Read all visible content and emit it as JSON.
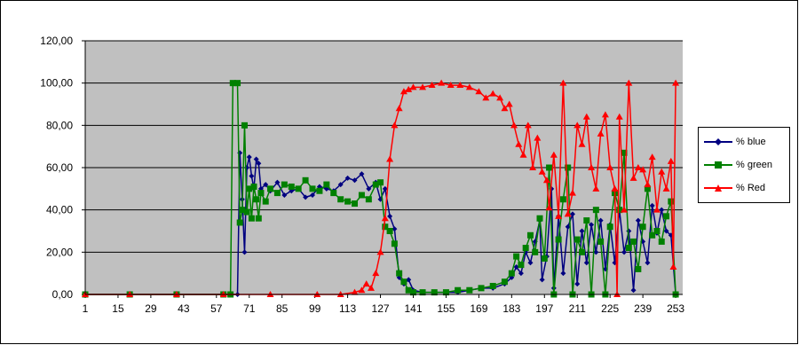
{
  "chart_data": {
    "type": "line",
    "title": "",
    "xlabel": "",
    "ylabel": "",
    "ylim": [
      0,
      120
    ],
    "grid": true,
    "legend_position": "right",
    "colors": {
      "plot_bg": "#C0C0C0",
      "blue": "#000080",
      "green": "#008000",
      "red": "#FF0000"
    },
    "y_ticks": [
      "0,00",
      "20,00",
      "40,00",
      "60,00",
      "80,00",
      "100,00",
      "120,00"
    ],
    "x_ticks": [
      1,
      15,
      29,
      43,
      57,
      71,
      85,
      99,
      113,
      127,
      141,
      155,
      169,
      183,
      197,
      211,
      225,
      239,
      253
    ],
    "series": [
      {
        "name": "% blue",
        "color": "#000080",
        "marker": "diamond",
        "points": [
          [
            1,
            0
          ],
          [
            20,
            0
          ],
          [
            40,
            0
          ],
          [
            60,
            0
          ],
          [
            66,
            0
          ],
          [
            67,
            67
          ],
          [
            68,
            45
          ],
          [
            69,
            20
          ],
          [
            70,
            60
          ],
          [
            71,
            65
          ],
          [
            72,
            56
          ],
          [
            73,
            50
          ],
          [
            74,
            64
          ],
          [
            75,
            62
          ],
          [
            76,
            50
          ],
          [
            78,
            52
          ],
          [
            80,
            49
          ],
          [
            83,
            53
          ],
          [
            86,
            47
          ],
          [
            89,
            49
          ],
          [
            92,
            50
          ],
          [
            95,
            46
          ],
          [
            98,
            47
          ],
          [
            101,
            51
          ],
          [
            104,
            50
          ],
          [
            107,
            49
          ],
          [
            110,
            52
          ],
          [
            113,
            55
          ],
          [
            116,
            54
          ],
          [
            119,
            57
          ],
          [
            122,
            50
          ],
          [
            125,
            53
          ],
          [
            127,
            45
          ],
          [
            129,
            50
          ],
          [
            131,
            37
          ],
          [
            133,
            31
          ],
          [
            135,
            8
          ],
          [
            137,
            5
          ],
          [
            139,
            7
          ],
          [
            141,
            2
          ],
          [
            145,
            1
          ],
          [
            150,
            1
          ],
          [
            155,
            1
          ],
          [
            160,
            1
          ],
          [
            165,
            2
          ],
          [
            170,
            3
          ],
          [
            175,
            3
          ],
          [
            180,
            5
          ],
          [
            183,
            8
          ],
          [
            185,
            13
          ],
          [
            187,
            10
          ],
          [
            189,
            20
          ],
          [
            191,
            15
          ],
          [
            193,
            25
          ],
          [
            195,
            35
          ],
          [
            196,
            7
          ],
          [
            198,
            18
          ],
          [
            200,
            50
          ],
          [
            201,
            3
          ],
          [
            203,
            37
          ],
          [
            205,
            10
          ],
          [
            207,
            32
          ],
          [
            209,
            38
          ],
          [
            211,
            5
          ],
          [
            213,
            30
          ],
          [
            215,
            15
          ],
          [
            217,
            33
          ],
          [
            219,
            20
          ],
          [
            221,
            35
          ],
          [
            223,
            12
          ],
          [
            225,
            33
          ],
          [
            227,
            15
          ],
          [
            229,
            40
          ],
          [
            231,
            20
          ],
          [
            233,
            30
          ],
          [
            235,
            2
          ],
          [
            237,
            35
          ],
          [
            239,
            25
          ],
          [
            241,
            15
          ],
          [
            243,
            42
          ],
          [
            245,
            29
          ],
          [
            247,
            40
          ],
          [
            249,
            30
          ],
          [
            251,
            28
          ],
          [
            253,
            0
          ]
        ]
      },
      {
        "name": "% green",
        "color": "#008000",
        "marker": "square",
        "points": [
          [
            1,
            0
          ],
          [
            20,
            0
          ],
          [
            40,
            0
          ],
          [
            60,
            0
          ],
          [
            63,
            0
          ],
          [
            64,
            100
          ],
          [
            66,
            100
          ],
          [
            67,
            34
          ],
          [
            68,
            40
          ],
          [
            69,
            80
          ],
          [
            70,
            39
          ],
          [
            71,
            50
          ],
          [
            72,
            36
          ],
          [
            73,
            51
          ],
          [
            74,
            45
          ],
          [
            75,
            36
          ],
          [
            76,
            48
          ],
          [
            78,
            44
          ],
          [
            80,
            50
          ],
          [
            83,
            48
          ],
          [
            86,
            52
          ],
          [
            89,
            51
          ],
          [
            92,
            50
          ],
          [
            95,
            54
          ],
          [
            98,
            50
          ],
          [
            101,
            49
          ],
          [
            104,
            52
          ],
          [
            107,
            48
          ],
          [
            110,
            45
          ],
          [
            113,
            44
          ],
          [
            116,
            43
          ],
          [
            119,
            47
          ],
          [
            122,
            45
          ],
          [
            125,
            52
          ],
          [
            127,
            53
          ],
          [
            129,
            32
          ],
          [
            131,
            30
          ],
          [
            133,
            24
          ],
          [
            135,
            10
          ],
          [
            137,
            6
          ],
          [
            139,
            2
          ],
          [
            141,
            1
          ],
          [
            145,
            1
          ],
          [
            150,
            1
          ],
          [
            155,
            1
          ],
          [
            160,
            2
          ],
          [
            165,
            2
          ],
          [
            170,
            3
          ],
          [
            175,
            4
          ],
          [
            180,
            6
          ],
          [
            183,
            10
          ],
          [
            185,
            18
          ],
          [
            187,
            14
          ],
          [
            189,
            22
          ],
          [
            191,
            28
          ],
          [
            193,
            20
          ],
          [
            195,
            36
          ],
          [
            197,
            17
          ],
          [
            199,
            60
          ],
          [
            201,
            0
          ],
          [
            203,
            26
          ],
          [
            205,
            45
          ],
          [
            207,
            60
          ],
          [
            209,
            0
          ],
          [
            211,
            26
          ],
          [
            213,
            20
          ],
          [
            215,
            35
          ],
          [
            217,
            0
          ],
          [
            219,
            40
          ],
          [
            221,
            25
          ],
          [
            223,
            0
          ],
          [
            225,
            32
          ],
          [
            227,
            48
          ],
          [
            229,
            40
          ],
          [
            231,
            67
          ],
          [
            233,
            22
          ],
          [
            235,
            25
          ],
          [
            237,
            12
          ],
          [
            239,
            32
          ],
          [
            241,
            50
          ],
          [
            243,
            28
          ],
          [
            245,
            30
          ],
          [
            247,
            25
          ],
          [
            249,
            37
          ],
          [
            251,
            44
          ],
          [
            253,
            0
          ]
        ]
      },
      {
        "name": "% Red",
        "color": "#FF0000",
        "marker": "triangle",
        "points": [
          [
            1,
            0
          ],
          [
            20,
            0
          ],
          [
            40,
            0
          ],
          [
            60,
            0
          ],
          [
            80,
            0
          ],
          [
            100,
            0
          ],
          [
            110,
            0
          ],
          [
            116,
            1
          ],
          [
            119,
            2
          ],
          [
            121,
            5
          ],
          [
            123,
            3
          ],
          [
            125,
            10
          ],
          [
            127,
            20
          ],
          [
            129,
            36
          ],
          [
            131,
            64
          ],
          [
            133,
            80
          ],
          [
            135,
            88
          ],
          [
            137,
            96
          ],
          [
            139,
            97
          ],
          [
            141,
            98
          ],
          [
            145,
            98
          ],
          [
            149,
            99
          ],
          [
            153,
            100
          ],
          [
            157,
            99
          ],
          [
            161,
            99
          ],
          [
            165,
            98
          ],
          [
            169,
            96
          ],
          [
            172,
            93
          ],
          [
            175,
            95
          ],
          [
            178,
            93
          ],
          [
            180,
            88
          ],
          [
            182,
            90
          ],
          [
            184,
            80
          ],
          [
            186,
            71
          ],
          [
            188,
            66
          ],
          [
            190,
            80
          ],
          [
            192,
            60
          ],
          [
            194,
            74
          ],
          [
            196,
            58
          ],
          [
            198,
            54
          ],
          [
            199,
            41
          ],
          [
            201,
            66
          ],
          [
            203,
            37
          ],
          [
            205,
            100
          ],
          [
            207,
            38
          ],
          [
            209,
            48
          ],
          [
            211,
            80
          ],
          [
            213,
            71
          ],
          [
            215,
            84
          ],
          [
            217,
            60
          ],
          [
            219,
            50
          ],
          [
            221,
            76
          ],
          [
            223,
            85
          ],
          [
            225,
            60
          ],
          [
            227,
            50
          ],
          [
            228,
            0
          ],
          [
            229,
            84
          ],
          [
            231,
            40
          ],
          [
            233,
            100
          ],
          [
            235,
            55
          ],
          [
            237,
            60
          ],
          [
            239,
            59
          ],
          [
            241,
            52
          ],
          [
            243,
            65
          ],
          [
            245,
            40
          ],
          [
            247,
            58
          ],
          [
            249,
            50
          ],
          [
            251,
            63
          ],
          [
            252,
            13
          ],
          [
            253,
            100
          ]
        ]
      }
    ]
  }
}
